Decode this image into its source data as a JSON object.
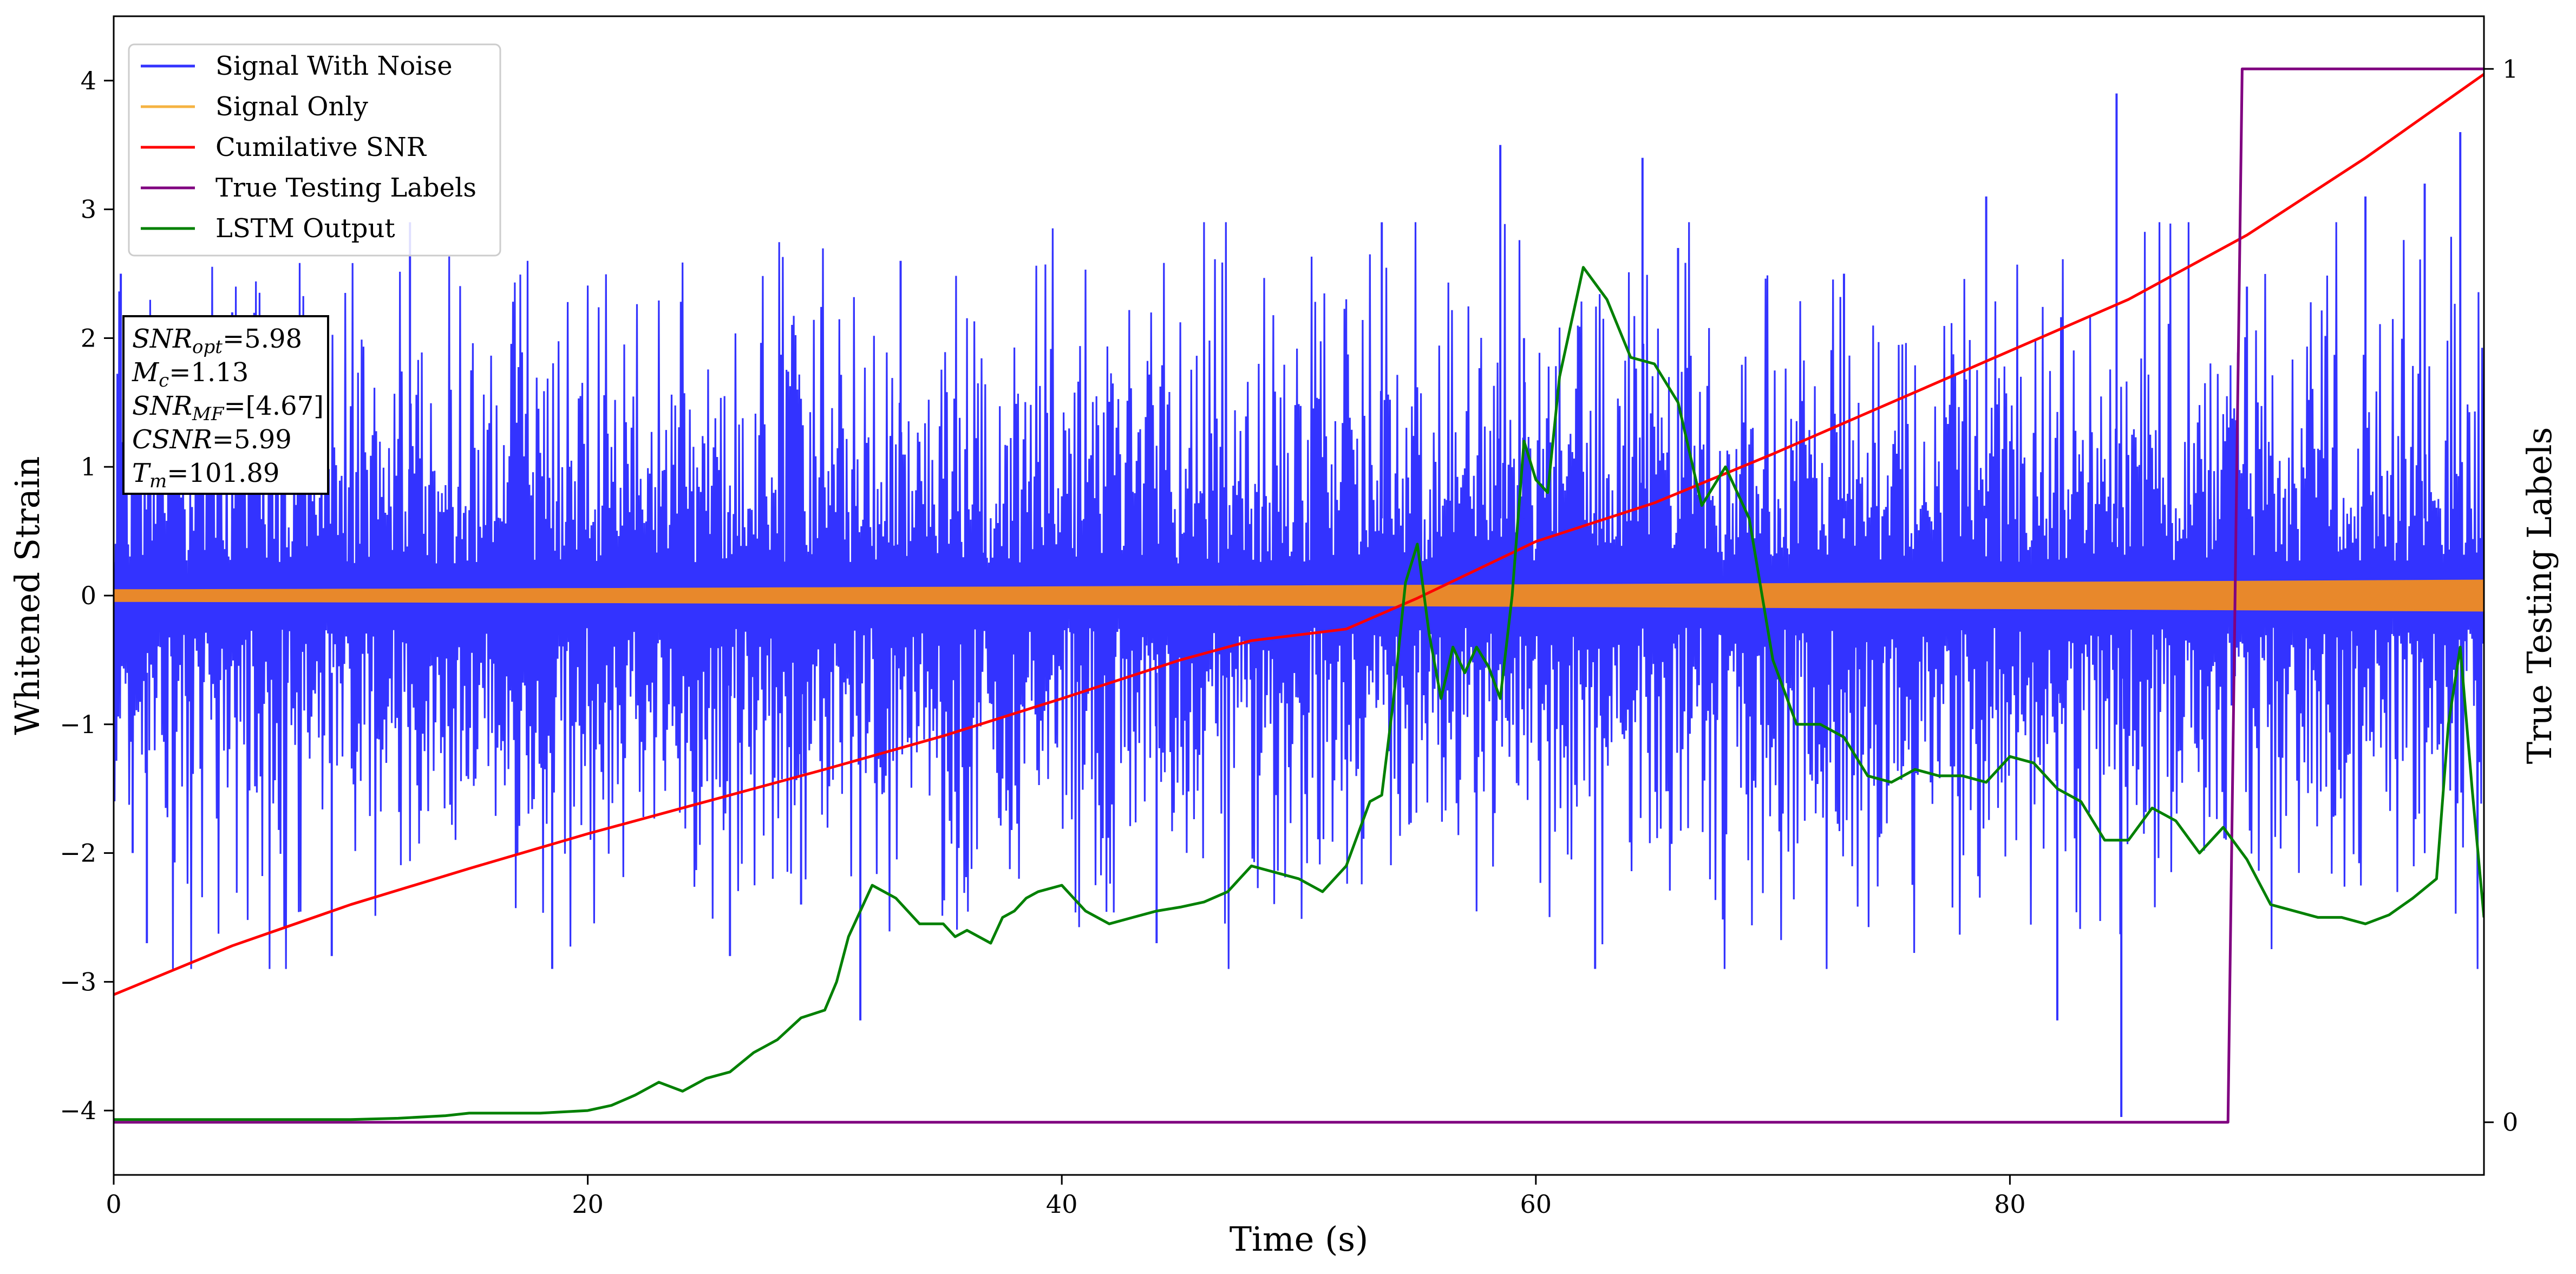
{
  "chart_data": {
    "type": "line",
    "xlabel": "Time (s)",
    "ylabel": "Whitened Strain",
    "y2label": "True Testing Labels",
    "xlim": [
      0,
      100
    ],
    "ylim": [
      -4.5,
      4.5
    ],
    "y2lim": [
      -0.05,
      1.05
    ],
    "xticks": [
      0,
      20,
      40,
      60,
      80
    ],
    "yticks": [
      -4,
      -3,
      -2,
      -1,
      0,
      1,
      2,
      3,
      4
    ],
    "y2ticks": [
      0,
      1
    ],
    "grid": false,
    "legend_position": "top-left",
    "series": [
      {
        "name": "Signal With Noise",
        "color": "#3333ff",
        "axis": "left",
        "style": "noise",
        "envelope": {
          "typical": 1.4,
          "peak": 2.6
        },
        "spikes": [
          [
            0.3,
            2.5
          ],
          [
            0.8,
            -2.0
          ],
          [
            1.4,
            -2.7
          ],
          [
            5.0,
            2.2
          ],
          [
            9.2,
            -2.8
          ],
          [
            12.5,
            2.9
          ],
          [
            18.5,
            -2.9
          ],
          [
            26.0,
            -2.8
          ],
          [
            29.0,
            -2.4
          ],
          [
            31.5,
            -3.3
          ],
          [
            33.2,
            2.6
          ],
          [
            44.0,
            -2.7
          ],
          [
            53.5,
            2.9
          ],
          [
            58.5,
            3.5
          ],
          [
            59.5,
            2.0
          ],
          [
            62.5,
            -2.9
          ],
          [
            64.5,
            3.4
          ],
          [
            66.0,
            2.7
          ],
          [
            73.0,
            2.5
          ],
          [
            79.0,
            3.1
          ],
          [
            82.0,
            -3.3
          ],
          [
            84.5,
            3.9
          ],
          [
            84.7,
            -4.05
          ],
          [
            90.0,
            2.4
          ],
          [
            95.0,
            3.1
          ],
          [
            97.5,
            3.2
          ],
          [
            99.0,
            3.6
          ]
        ]
      },
      {
        "name": "Signal Only",
        "color": "#e8882b",
        "legend_color": "#f5b342",
        "axis": "left",
        "style": "band",
        "amp_start": 0.045,
        "amp_end": 0.12
      },
      {
        "name": "Cumilative SNR",
        "color": "#ff0000",
        "axis": "left",
        "x": [
          0,
          5,
          10,
          15,
          20,
          25,
          30,
          35,
          40,
          45,
          48,
          52,
          55,
          60,
          65,
          70,
          75,
          80,
          85,
          90,
          95,
          100
        ],
        "y": [
          -3.1,
          -2.72,
          -2.4,
          -2.12,
          -1.85,
          -1.6,
          -1.35,
          -1.09,
          -0.8,
          -0.5,
          -0.35,
          -0.26,
          -0.02,
          0.42,
          0.72,
          1.1,
          1.5,
          1.9,
          2.3,
          2.8,
          3.4,
          4.05
        ]
      },
      {
        "name": "True Testing Labels",
        "color": "#800080",
        "axis": "right",
        "x": [
          0,
          89.2,
          89.8,
          100
        ],
        "y": [
          0,
          0,
          1,
          1
        ]
      },
      {
        "name": "LSTM Output",
        "color": "#008000",
        "axis": "left",
        "x": [
          0,
          10,
          12,
          14,
          15,
          18,
          20,
          21,
          22,
          23,
          24,
          25,
          26,
          27,
          28,
          29,
          30,
          30.5,
          31,
          31.5,
          32,
          33,
          34,
          35,
          35.5,
          36,
          37,
          37.5,
          38,
          38.5,
          39,
          40,
          41,
          42,
          43,
          44,
          45,
          46,
          47,
          48,
          49,
          50,
          51,
          52,
          53,
          53.5,
          54,
          54.5,
          55,
          55.5,
          56,
          56.5,
          57,
          57.5,
          58,
          58.5,
          59,
          59.5,
          60,
          60.5,
          61,
          62,
          63,
          64,
          65,
          66,
          67,
          68,
          69,
          70,
          71,
          72,
          73,
          74,
          75,
          76,
          77,
          78,
          79,
          80,
          81,
          82,
          83,
          84,
          85,
          86,
          87,
          88,
          89,
          90,
          91,
          92,
          93,
          94,
          95,
          96,
          97,
          98,
          98.5,
          99,
          99.5,
          100
        ],
        "y": [
          -4.07,
          -4.07,
          -4.06,
          -4.04,
          -4.02,
          -4.02,
          -4.0,
          -3.96,
          -3.88,
          -3.78,
          -3.85,
          -3.75,
          -3.7,
          -3.55,
          -3.45,
          -3.28,
          -3.22,
          -3.0,
          -2.65,
          -2.45,
          -2.25,
          -2.35,
          -2.55,
          -2.55,
          -2.65,
          -2.6,
          -2.7,
          -2.5,
          -2.45,
          -2.35,
          -2.3,
          -2.25,
          -2.45,
          -2.55,
          -2.5,
          -2.45,
          -2.42,
          -2.38,
          -2.3,
          -2.1,
          -2.15,
          -2.2,
          -2.3,
          -2.1,
          -1.6,
          -1.55,
          -0.8,
          0.1,
          0.4,
          -0.3,
          -0.8,
          -0.4,
          -0.6,
          -0.4,
          -0.55,
          -0.8,
          0.0,
          1.2,
          0.9,
          0.8,
          1.7,
          2.55,
          2.3,
          1.85,
          1.8,
          1.5,
          0.7,
          1.0,
          0.6,
          -0.5,
          -1.0,
          -1.0,
          -1.1,
          -1.4,
          -1.45,
          -1.35,
          -1.4,
          -1.4,
          -1.45,
          -1.25,
          -1.3,
          -1.5,
          -1.6,
          -1.9,
          -1.9,
          -1.65,
          -1.75,
          -2.0,
          -1.8,
          -2.05,
          -2.4,
          -2.45,
          -2.5,
          -2.5,
          -2.55,
          -2.48,
          -2.35,
          -2.2,
          -1.0,
          -0.4,
          -1.5,
          -2.5
        ]
      }
    ],
    "annotation": {
      "lines": [
        {
          "main": "SNR",
          "sub": "opt",
          "value": "=5.98"
        },
        {
          "main": "M",
          "sub": "c",
          "value": "=1.13"
        },
        {
          "main": "SNR",
          "sub": "MF",
          "value": "=[4.67]"
        },
        {
          "main": "CSNR",
          "sub": "",
          "value": "=5.99"
        },
        {
          "main": "T",
          "sub": "m",
          "value": "=101.89"
        }
      ]
    }
  }
}
